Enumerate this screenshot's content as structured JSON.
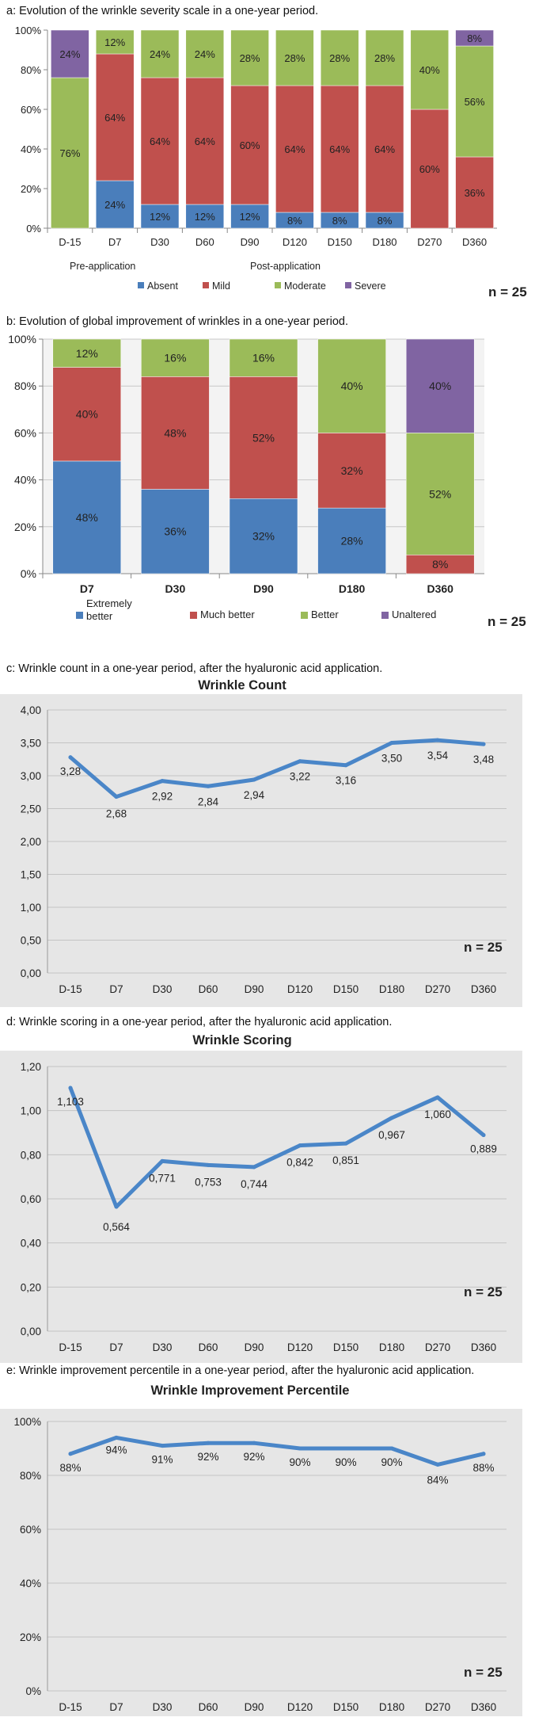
{
  "captions": {
    "a": "a: Evolution of the wrinkle severity scale in a one-year period.",
    "b": "b: Evolution of global improvement of wrinkles in a one-year period.",
    "c": "c: Wrinkle count in a one-year period, after the hyaluronic acid application.",
    "d": "d: Wrinkle scoring in a one-year period, after the hyaluronic acid application.",
    "e": "e: Wrinkle improvement percentile in a one-year period, after the hyaluronic acid application."
  },
  "colors": {
    "blue": "#4a7ebb",
    "red": "#c0504d",
    "green": "#9bbb59",
    "purple": "#8064a2",
    "line": "#4a86c8",
    "plot_bg": "#e6e6e6"
  },
  "chart_data": [
    {
      "id": "a",
      "type": "bar",
      "stacked": true,
      "categories": [
        "D-15",
        "D7",
        "D30",
        "D60",
        "D90",
        "D120",
        "D150",
        "D180",
        "D270",
        "D360"
      ],
      "yticks": [
        "0%",
        "20%",
        "40%",
        "60%",
        "80%",
        "100%"
      ],
      "ylim": [
        0,
        100
      ],
      "series": [
        {
          "name": "Absent",
          "color": "#4a7ebb",
          "values": [
            0,
            24,
            12,
            12,
            12,
            8,
            8,
            8,
            0,
            0
          ],
          "labels": [
            "",
            "24%",
            "12%",
            "12%",
            "12%",
            "8%",
            "8%",
            "8%",
            "",
            ""
          ]
        },
        {
          "name": "Mild",
          "color": "#c0504d",
          "values": [
            0,
            64,
            64,
            64,
            60,
            64,
            64,
            64,
            60,
            36
          ],
          "labels": [
            "",
            "64%",
            "64%",
            "64%",
            "60%",
            "64%",
            "64%",
            "64%",
            "60%",
            "36%"
          ]
        },
        {
          "name": "Moderate",
          "color": "#9bbb59",
          "values": [
            76,
            12,
            24,
            24,
            28,
            28,
            28,
            28,
            40,
            56
          ],
          "labels": [
            "76%",
            "12%",
            "24%",
            "24%",
            "28%",
            "28%",
            "28%",
            "28%",
            "40%",
            "56%"
          ]
        },
        {
          "name": "Severe",
          "color": "#8064a2",
          "values": [
            24,
            0,
            0,
            0,
            0,
            0,
            0,
            0,
            0,
            8
          ],
          "labels": [
            "24%",
            "",
            "",
            "",
            "",
            "",
            "",
            "",
            "",
            "8%"
          ]
        }
      ],
      "group_labels": [
        "Pre-application",
        "Post-application"
      ],
      "legend": [
        "Absent",
        "Mild",
        "Moderate",
        "Severe"
      ],
      "n_label": "n = 25"
    },
    {
      "id": "b",
      "type": "bar",
      "stacked": true,
      "categories": [
        "D7",
        "D30",
        "D90",
        "D180",
        "D360"
      ],
      "yticks": [
        "0%",
        "20%",
        "40%",
        "60%",
        "80%",
        "100%"
      ],
      "ylim": [
        0,
        100
      ],
      "series": [
        {
          "name": "Extremely better",
          "color": "#4a7ebb",
          "values": [
            48,
            36,
            32,
            28,
            0
          ],
          "labels": [
            "48%",
            "36%",
            "32%",
            "28%",
            ""
          ]
        },
        {
          "name": "Much better",
          "color": "#c0504d",
          "values": [
            40,
            48,
            52,
            32,
            8
          ],
          "labels": [
            "40%",
            "48%",
            "52%",
            "32%",
            "8%"
          ]
        },
        {
          "name": "Better",
          "color": "#9bbb59",
          "values": [
            12,
            16,
            16,
            40,
            52
          ],
          "labels": [
            "12%",
            "16%",
            "16%",
            "40%",
            "52%"
          ]
        },
        {
          "name": "Unaltered",
          "color": "#8064a2",
          "values": [
            0,
            0,
            0,
            0,
            40
          ],
          "labels": [
            "",
            "",
            "",
            "",
            "40%"
          ]
        }
      ],
      "legend": [
        "Extremely better",
        "Much better",
        "Better",
        "Unaltered"
      ],
      "n_label": "n = 25"
    },
    {
      "id": "c",
      "type": "line",
      "title": "Wrinkle Count",
      "categories": [
        "D-15",
        "D7",
        "D30",
        "D60",
        "D90",
        "D120",
        "D150",
        "D180",
        "D270",
        "D360"
      ],
      "values": [
        3.28,
        2.68,
        2.92,
        2.84,
        2.94,
        3.22,
        3.16,
        3.5,
        3.54,
        3.48
      ],
      "labels": [
        "3,28",
        "2,68",
        "2,92",
        "2,84",
        "2,94",
        "3,22",
        "3,16",
        "3,50",
        "3,54",
        "3,48"
      ],
      "yticks": [
        "0,00",
        "0,50",
        "1,00",
        "1,50",
        "2,00",
        "2,50",
        "3,00",
        "3,50",
        "4,00"
      ],
      "ylim": [
        0,
        4
      ],
      "n_label": "n = 25"
    },
    {
      "id": "d",
      "type": "line",
      "title": "Wrinkle Scoring",
      "categories": [
        "D-15",
        "D7",
        "D30",
        "D60",
        "D90",
        "D120",
        "D150",
        "D180",
        "D270",
        "D360"
      ],
      "values": [
        1.103,
        0.564,
        0.771,
        0.753,
        0.744,
        0.842,
        0.851,
        0.967,
        1.06,
        0.889
      ],
      "labels": [
        "1,103",
        "0,564",
        "0,771",
        "0,753",
        "0,744",
        "0,842",
        "0,851",
        "0,967",
        "1,060",
        "0,889"
      ],
      "yticks": [
        "0,00",
        "0,20",
        "0,40",
        "0,60",
        "0,80",
        "1,00",
        "1,20"
      ],
      "ylim": [
        0,
        1.2
      ],
      "n_label": "n = 25"
    },
    {
      "id": "e",
      "type": "line",
      "title": "Wrinkle Improvement Percentile",
      "categories": [
        "D-15",
        "D7",
        "D30",
        "D60",
        "D90",
        "D120",
        "D150",
        "D180",
        "D270",
        "D360"
      ],
      "values": [
        88,
        94,
        91,
        92,
        92,
        90,
        90,
        90,
        84,
        88
      ],
      "labels": [
        "88%",
        "94%",
        "91%",
        "92%",
        "92%",
        "90%",
        "90%",
        "90%",
        "84%",
        "88%"
      ],
      "yticks": [
        "0%",
        "20%",
        "40%",
        "60%",
        "80%",
        "100%"
      ],
      "ylim": [
        0,
        100
      ],
      "n_label": "n = 25"
    }
  ]
}
